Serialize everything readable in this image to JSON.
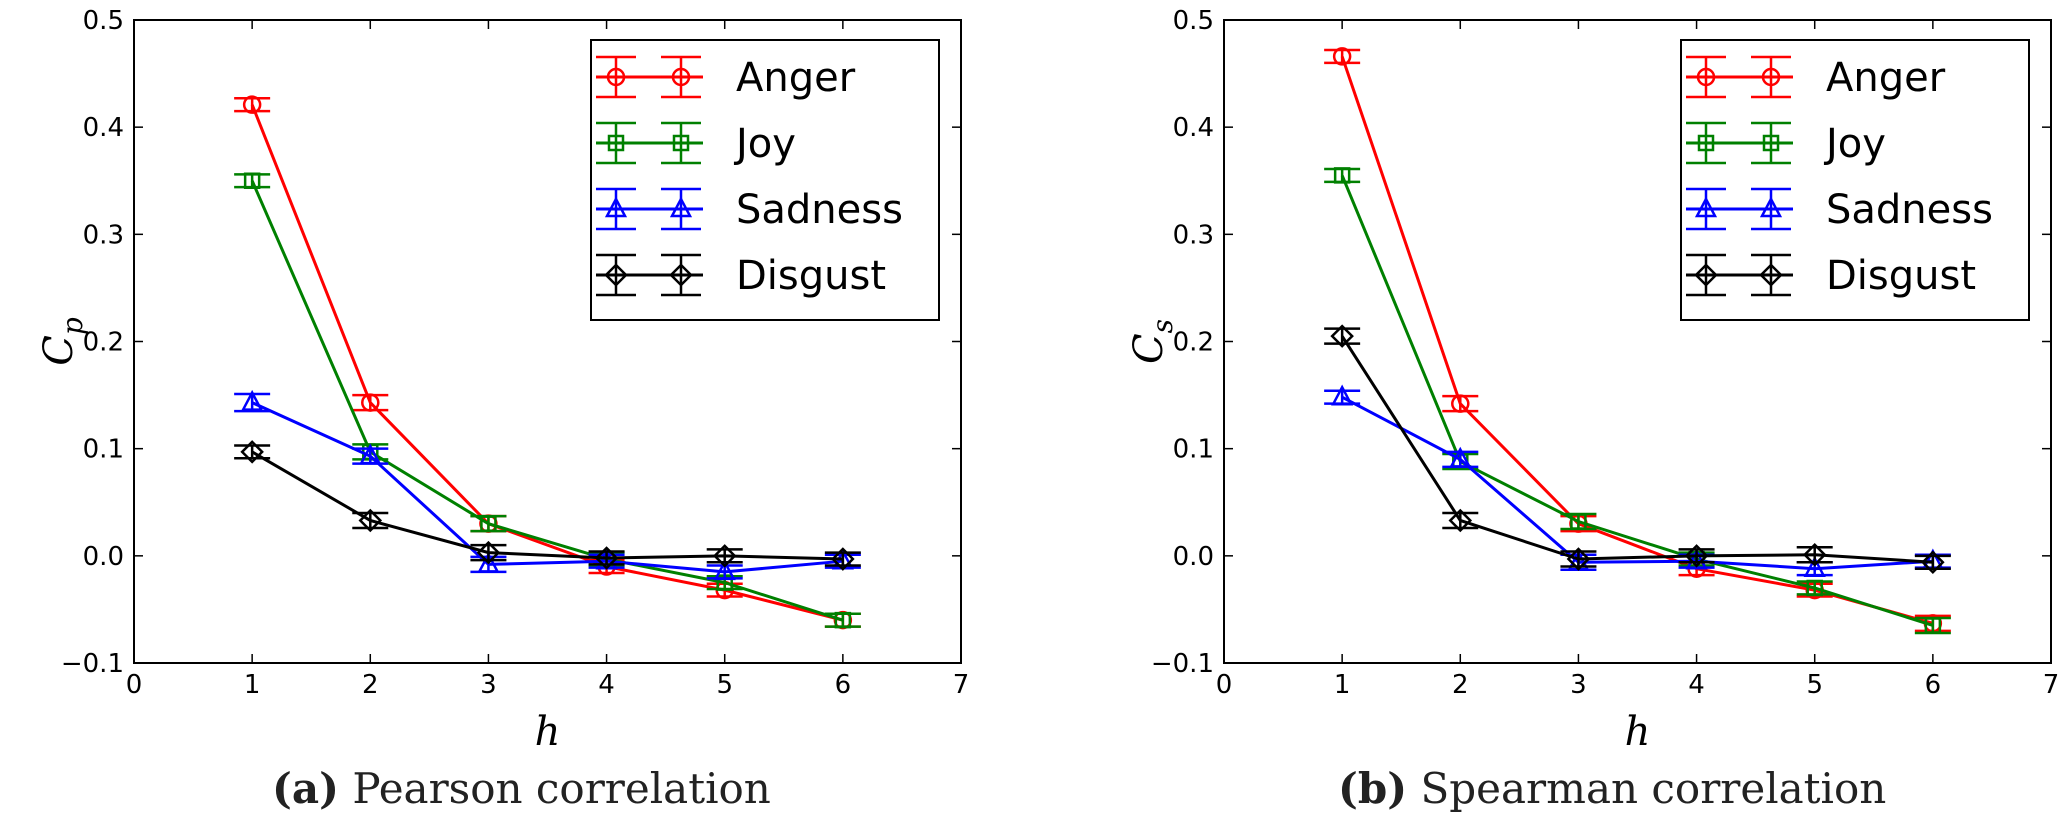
{
  "captions": [
    {
      "letter": "(a)",
      "text": "Pearson correlation"
    },
    {
      "letter": "(b)",
      "text": "Spearman correlation"
    }
  ],
  "chart_data": [
    {
      "type": "line",
      "ylabel_main": "C",
      "ylabel_sub": "p",
      "xlabel": "h",
      "xlim": [
        0,
        7
      ],
      "ylim": [
        -0.1,
        0.5
      ],
      "xticks": [
        "0",
        "1",
        "2",
        "3",
        "4",
        "5",
        "6",
        "7"
      ],
      "yticks": [
        "−0.1",
        "0.0",
        "0.1",
        "0.2",
        "0.3",
        "0.4",
        "0.5"
      ],
      "grid": false,
      "legend_position": "top-right",
      "x": [
        1,
        2,
        3,
        4,
        5,
        6
      ],
      "series": [
        {
          "name": "Anger",
          "color": "#ff0000",
          "marker": "circle",
          "values": [
            0.421,
            0.143,
            0.03,
            -0.01,
            -0.032,
            -0.06
          ],
          "errors": [
            0.006,
            0.007,
            0.007,
            0.006,
            0.006,
            0.006
          ]
        },
        {
          "name": "Joy",
          "color": "#008000",
          "marker": "square",
          "values": [
            0.35,
            0.097,
            0.03,
            -0.003,
            -0.025,
            -0.06
          ],
          "errors": [
            0.006,
            0.007,
            0.007,
            0.006,
            0.006,
            0.006
          ]
        },
        {
          "name": "Sadness",
          "color": "#0000ff",
          "marker": "triangle",
          "values": [
            0.143,
            0.093,
            -0.008,
            -0.005,
            -0.015,
            -0.005
          ],
          "errors": [
            0.008,
            0.007,
            0.007,
            0.006,
            0.006,
            0.006
          ]
        },
        {
          "name": "Disgust",
          "color": "#000000",
          "marker": "diamond",
          "values": [
            0.097,
            0.033,
            0.003,
            -0.002,
            0.0,
            -0.003
          ],
          "errors": [
            0.006,
            0.007,
            0.007,
            0.006,
            0.006,
            0.006
          ]
        }
      ]
    },
    {
      "type": "line",
      "ylabel_main": "C",
      "ylabel_sub": "s",
      "xlabel": "h",
      "xlim": [
        0,
        7
      ],
      "ylim": [
        -0.1,
        0.5
      ],
      "xticks": [
        "0",
        "1",
        "2",
        "3",
        "4",
        "5",
        "6",
        "7"
      ],
      "yticks": [
        "−0.1",
        "0.0",
        "0.1",
        "0.2",
        "0.3",
        "0.4",
        "0.5"
      ],
      "grid": false,
      "legend_position": "top-right",
      "x": [
        1,
        2,
        3,
        4,
        5,
        6
      ],
      "series": [
        {
          "name": "Anger",
          "color": "#ff0000",
          "marker": "circle",
          "values": [
            0.466,
            0.142,
            0.03,
            -0.012,
            -0.032,
            -0.063
          ],
          "errors": [
            0.006,
            0.007,
            0.007,
            0.006,
            0.006,
            0.007
          ]
        },
        {
          "name": "Joy",
          "color": "#008000",
          "marker": "square",
          "values": [
            0.355,
            0.088,
            0.032,
            -0.003,
            -0.03,
            -0.065
          ],
          "errors": [
            0.006,
            0.007,
            0.007,
            0.006,
            0.006,
            0.007
          ]
        },
        {
          "name": "Sadness",
          "color": "#0000ff",
          "marker": "triangle",
          "values": [
            0.148,
            0.09,
            -0.006,
            -0.005,
            -0.012,
            -0.005
          ],
          "errors": [
            0.006,
            0.007,
            0.007,
            0.006,
            0.006,
            0.006
          ]
        },
        {
          "name": "Disgust",
          "color": "#000000",
          "marker": "diamond",
          "values": [
            0.205,
            0.033,
            -0.003,
            0.0,
            0.001,
            -0.006
          ],
          "errors": [
            0.007,
            0.007,
            0.007,
            0.006,
            0.007,
            0.006
          ]
        }
      ]
    }
  ]
}
